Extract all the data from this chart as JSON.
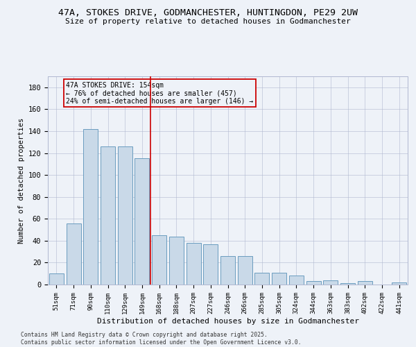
{
  "title_line1": "47A, STOKES DRIVE, GODMANCHESTER, HUNTINGDON, PE29 2UW",
  "title_line2": "Size of property relative to detached houses in Godmanchester",
  "xlabel": "Distribution of detached houses by size in Godmanchester",
  "ylabel": "Number of detached properties",
  "footer_line1": "Contains HM Land Registry data © Crown copyright and database right 2025.",
  "footer_line2": "Contains public sector information licensed under the Open Government Licence v3.0.",
  "categories": [
    "51sqm",
    "71sqm",
    "90sqm",
    "110sqm",
    "129sqm",
    "149sqm",
    "168sqm",
    "188sqm",
    "207sqm",
    "227sqm",
    "246sqm",
    "266sqm",
    "285sqm",
    "305sqm",
    "324sqm",
    "344sqm",
    "363sqm",
    "383sqm",
    "402sqm",
    "422sqm",
    "441sqm"
  ],
  "values": [
    10,
    56,
    142,
    126,
    126,
    115,
    45,
    44,
    38,
    37,
    26,
    26,
    11,
    11,
    8,
    3,
    4,
    1,
    3,
    0,
    2
  ],
  "bar_color": "#c9d9e8",
  "bar_edge_color": "#6a9cbf",
  "vline_x": 5.5,
  "vline_color": "#cc0000",
  "annotation_line1": "47A STOKES DRIVE: 154sqm",
  "annotation_line2": "← 76% of detached houses are smaller (457)",
  "annotation_line3": "24% of semi-detached houses are larger (146) →",
  "box_edge_color": "#cc0000",
  "background_color": "#eef2f8",
  "grid_color": "#b0b8d0",
  "ylim": [
    0,
    190
  ],
  "yticks": [
    0,
    20,
    40,
    60,
    80,
    100,
    120,
    140,
    160,
    180
  ]
}
